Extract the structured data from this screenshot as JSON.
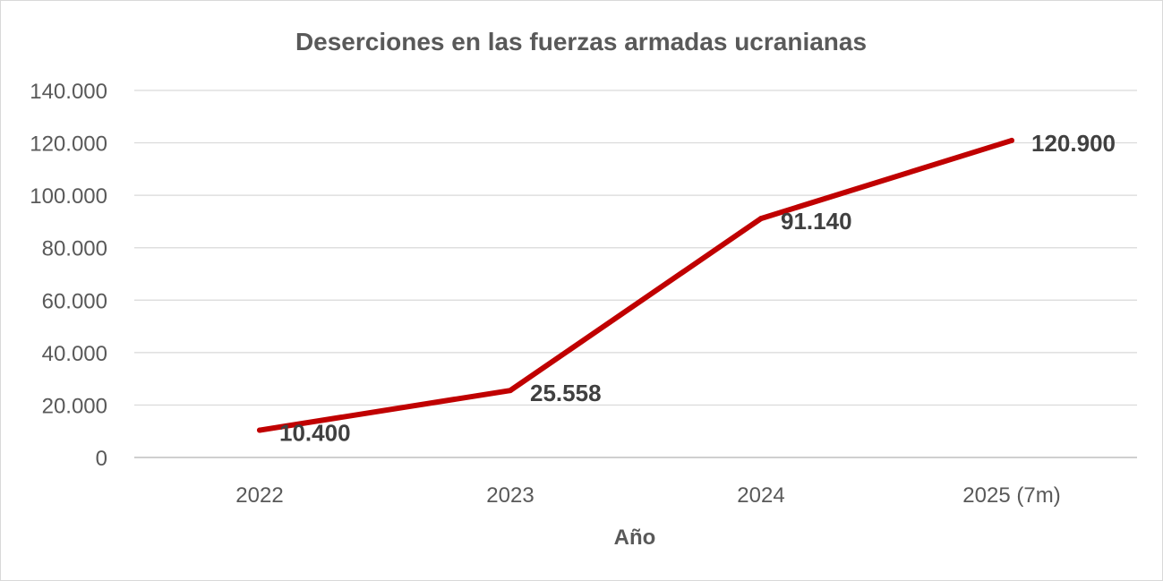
{
  "chart_data": {
    "type": "line",
    "title": "Deserciones en las fuerzas armadas ucranianas",
    "xlabel": "Año",
    "ylabel": "",
    "categories": [
      "2022",
      "2023",
      "2024",
      "2025 (7m)"
    ],
    "series": [
      {
        "values": [
          10400,
          25558,
          91140,
          120900
        ],
        "labels": [
          "10.400",
          "25.558",
          "91.140",
          "120.900"
        ]
      }
    ],
    "ylim": [
      0,
      140000
    ],
    "yticks": [
      0,
      20000,
      40000,
      60000,
      80000,
      100000,
      120000,
      140000
    ],
    "ytick_labels": [
      "0",
      "20.000",
      "40.000",
      "60.000",
      "80.000",
      "100.000",
      "120.000",
      "140.000"
    ],
    "grid": true,
    "legend": "none",
    "line_color": "#c00000"
  }
}
